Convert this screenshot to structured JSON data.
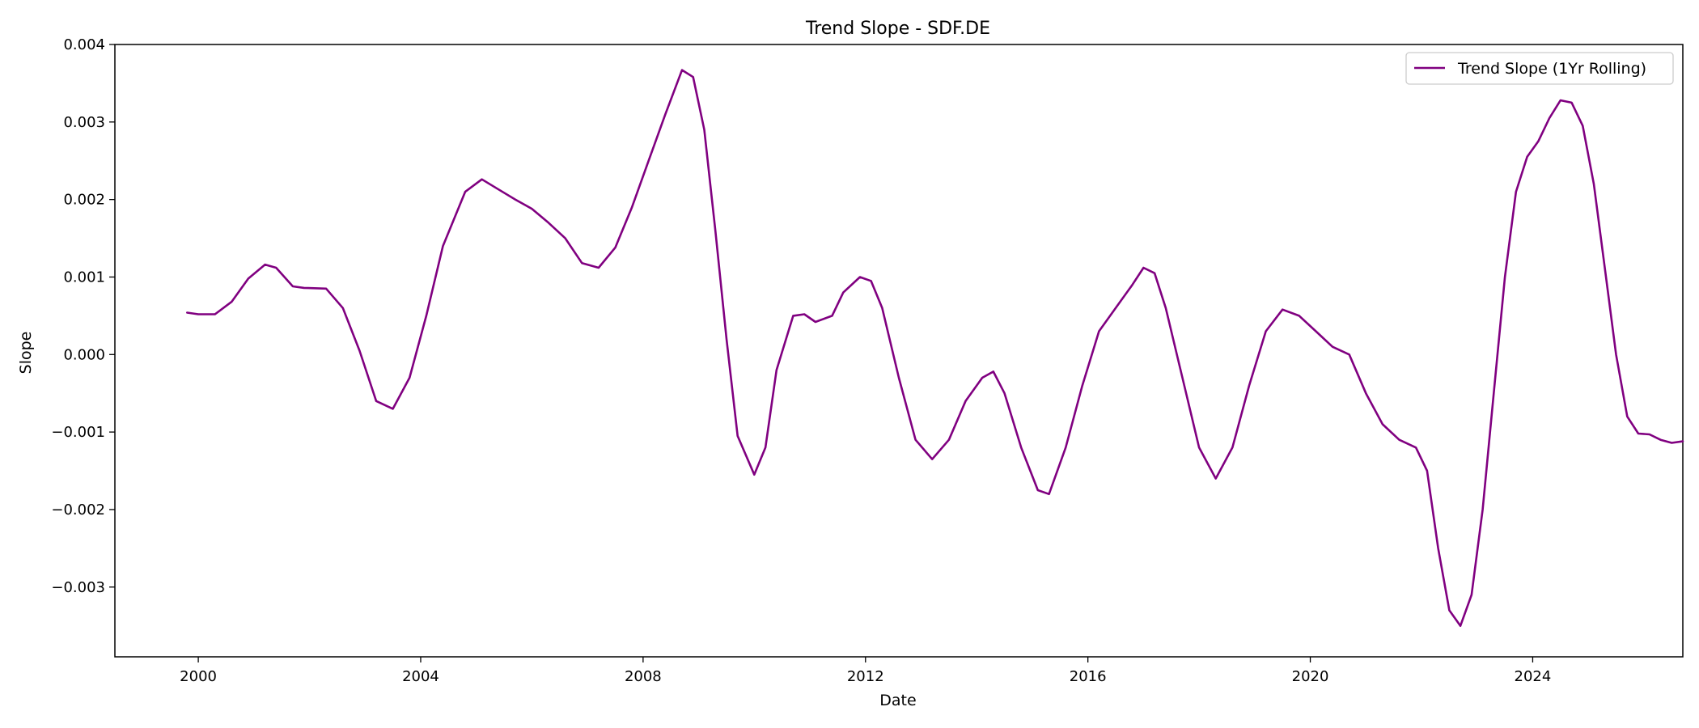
{
  "chart_data": {
    "type": "line",
    "title": "Trend Slope - SDF.DE",
    "xlabel": "Date",
    "ylabel": "Slope",
    "xlim": [
      1998.5,
      2026.7
    ],
    "ylim": [
      -0.0039,
      0.004
    ],
    "x_ticks": [
      {
        "value": 2000,
        "label": "2000"
      },
      {
        "value": 2004,
        "label": "2004"
      },
      {
        "value": 2008,
        "label": "2008"
      },
      {
        "value": 2012,
        "label": "2012"
      },
      {
        "value": 2016,
        "label": "2016"
      },
      {
        "value": 2020,
        "label": "2020"
      },
      {
        "value": 2024,
        "label": "2024"
      }
    ],
    "y_ticks": [
      {
        "value": 0.004,
        "label": "0.004"
      },
      {
        "value": 0.003,
        "label": "0.003"
      },
      {
        "value": 0.002,
        "label": "0.002"
      },
      {
        "value": 0.001,
        "label": "0.001"
      },
      {
        "value": 0.0,
        "label": "0.000"
      },
      {
        "value": -0.001,
        "label": "−0.001"
      },
      {
        "value": -0.002,
        "label": "−0.002"
      },
      {
        "value": -0.003,
        "label": "−0.003"
      }
    ],
    "grid": false,
    "legend": {
      "position": "top-right"
    },
    "series": [
      {
        "name": "Trend Slope (1Yr Rolling)",
        "color": "#800080",
        "points": [
          [
            1999.8,
            0.00054
          ],
          [
            2000.0,
            0.00052
          ],
          [
            2000.3,
            0.00052
          ],
          [
            2000.6,
            0.00068
          ],
          [
            2000.9,
            0.00098
          ],
          [
            2001.2,
            0.00116
          ],
          [
            2001.4,
            0.00112
          ],
          [
            2001.7,
            0.00088
          ],
          [
            2001.9,
            0.00086
          ],
          [
            2002.3,
            0.00085
          ],
          [
            2002.6,
            0.0006
          ],
          [
            2002.9,
            5e-05
          ],
          [
            2003.2,
            -0.0006
          ],
          [
            2003.5,
            -0.0007
          ],
          [
            2003.8,
            -0.0003
          ],
          [
            2004.1,
            0.0005
          ],
          [
            2004.4,
            0.0014
          ],
          [
            2004.8,
            0.0021
          ],
          [
            2005.1,
            0.00226
          ],
          [
            2005.4,
            0.00213
          ],
          [
            2005.7,
            0.002
          ],
          [
            2006.0,
            0.00188
          ],
          [
            2006.3,
            0.0017
          ],
          [
            2006.6,
            0.0015
          ],
          [
            2006.9,
            0.00118
          ],
          [
            2007.2,
            0.00112
          ],
          [
            2007.5,
            0.00138
          ],
          [
            2007.8,
            0.0019
          ],
          [
            2008.1,
            0.0025
          ],
          [
            2008.4,
            0.0031
          ],
          [
            2008.7,
            0.00367
          ],
          [
            2008.9,
            0.00358
          ],
          [
            2009.1,
            0.0029
          ],
          [
            2009.3,
            0.0016
          ],
          [
            2009.5,
            0.0002
          ],
          [
            2009.7,
            -0.00105
          ],
          [
            2010.0,
            -0.00155
          ],
          [
            2010.2,
            -0.0012
          ],
          [
            2010.4,
            -0.0002
          ],
          [
            2010.7,
            0.0005
          ],
          [
            2010.9,
            0.00052
          ],
          [
            2011.1,
            0.00042
          ],
          [
            2011.4,
            0.0005
          ],
          [
            2011.6,
            0.0008
          ],
          [
            2011.9,
            0.001
          ],
          [
            2012.1,
            0.00095
          ],
          [
            2012.3,
            0.0006
          ],
          [
            2012.6,
            -0.0003
          ],
          [
            2012.9,
            -0.0011
          ],
          [
            2013.2,
            -0.00135
          ],
          [
            2013.5,
            -0.0011
          ],
          [
            2013.8,
            -0.0006
          ],
          [
            2014.1,
            -0.0003
          ],
          [
            2014.3,
            -0.00022
          ],
          [
            2014.5,
            -0.0005
          ],
          [
            2014.8,
            -0.0012
          ],
          [
            2015.1,
            -0.00175
          ],
          [
            2015.3,
            -0.0018
          ],
          [
            2015.6,
            -0.0012
          ],
          [
            2015.9,
            -0.0004
          ],
          [
            2016.2,
            0.0003
          ],
          [
            2016.5,
            0.0006
          ],
          [
            2016.8,
            0.0009
          ],
          [
            2017.0,
            0.00112
          ],
          [
            2017.2,
            0.00105
          ],
          [
            2017.4,
            0.0006
          ],
          [
            2017.7,
            -0.0003
          ],
          [
            2018.0,
            -0.0012
          ],
          [
            2018.3,
            -0.0016
          ],
          [
            2018.6,
            -0.0012
          ],
          [
            2018.9,
            -0.0004
          ],
          [
            2019.2,
            0.0003
          ],
          [
            2019.5,
            0.00058
          ],
          [
            2019.8,
            0.0005
          ],
          [
            2020.1,
            0.0003
          ],
          [
            2020.4,
            0.0001
          ],
          [
            2020.7,
            0.0
          ],
          [
            2021.0,
            -0.0005
          ],
          [
            2021.3,
            -0.0009
          ],
          [
            2021.6,
            -0.0011
          ],
          [
            2021.9,
            -0.0012
          ],
          [
            2022.1,
            -0.0015
          ],
          [
            2022.3,
            -0.0025
          ],
          [
            2022.5,
            -0.0033
          ],
          [
            2022.7,
            -0.0035
          ],
          [
            2022.9,
            -0.0031
          ],
          [
            2023.1,
            -0.002
          ],
          [
            2023.3,
            -0.0005
          ],
          [
            2023.5,
            0.001
          ],
          [
            2023.7,
            0.0021
          ],
          [
            2023.9,
            0.00255
          ],
          [
            2024.1,
            0.00275
          ],
          [
            2024.3,
            0.00305
          ],
          [
            2024.5,
            0.00328
          ],
          [
            2024.7,
            0.00325
          ],
          [
            2024.9,
            0.00295
          ],
          [
            2025.1,
            0.0022
          ],
          [
            2025.3,
            0.0011
          ],
          [
            2025.5,
            0.0
          ],
          [
            2025.7,
            -0.0008
          ],
          [
            2025.9,
            -0.00102
          ],
          [
            2026.1,
            -0.00103
          ],
          [
            2026.3,
            -0.0011
          ],
          [
            2026.5,
            -0.00114
          ],
          [
            2026.7,
            -0.00112
          ]
        ]
      }
    ]
  }
}
